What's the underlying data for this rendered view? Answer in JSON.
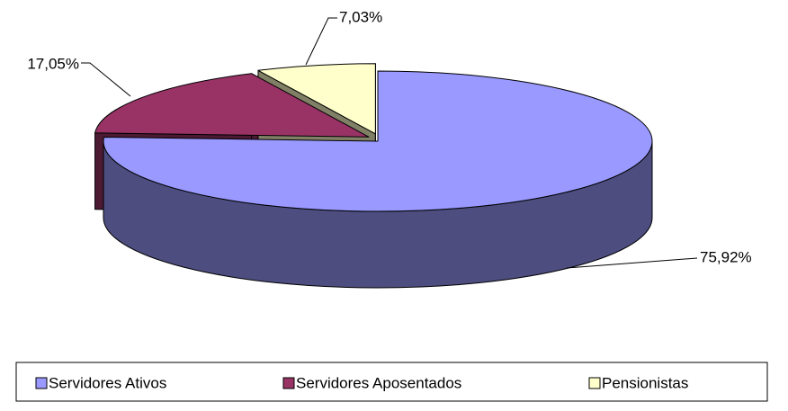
{
  "chart_data": {
    "type": "pie3d",
    "categories": [
      "Servidores Ativos",
      "Servidores Aposentados",
      "Pensionistas"
    ],
    "values": [
      75.92,
      17.05,
      7.03
    ],
    "value_labels": [
      "75,92%",
      "17,05%",
      "7,03%"
    ],
    "colors": [
      "#9999ff",
      "#993366",
      "#ffffcc"
    ],
    "legend": "bottom"
  }
}
